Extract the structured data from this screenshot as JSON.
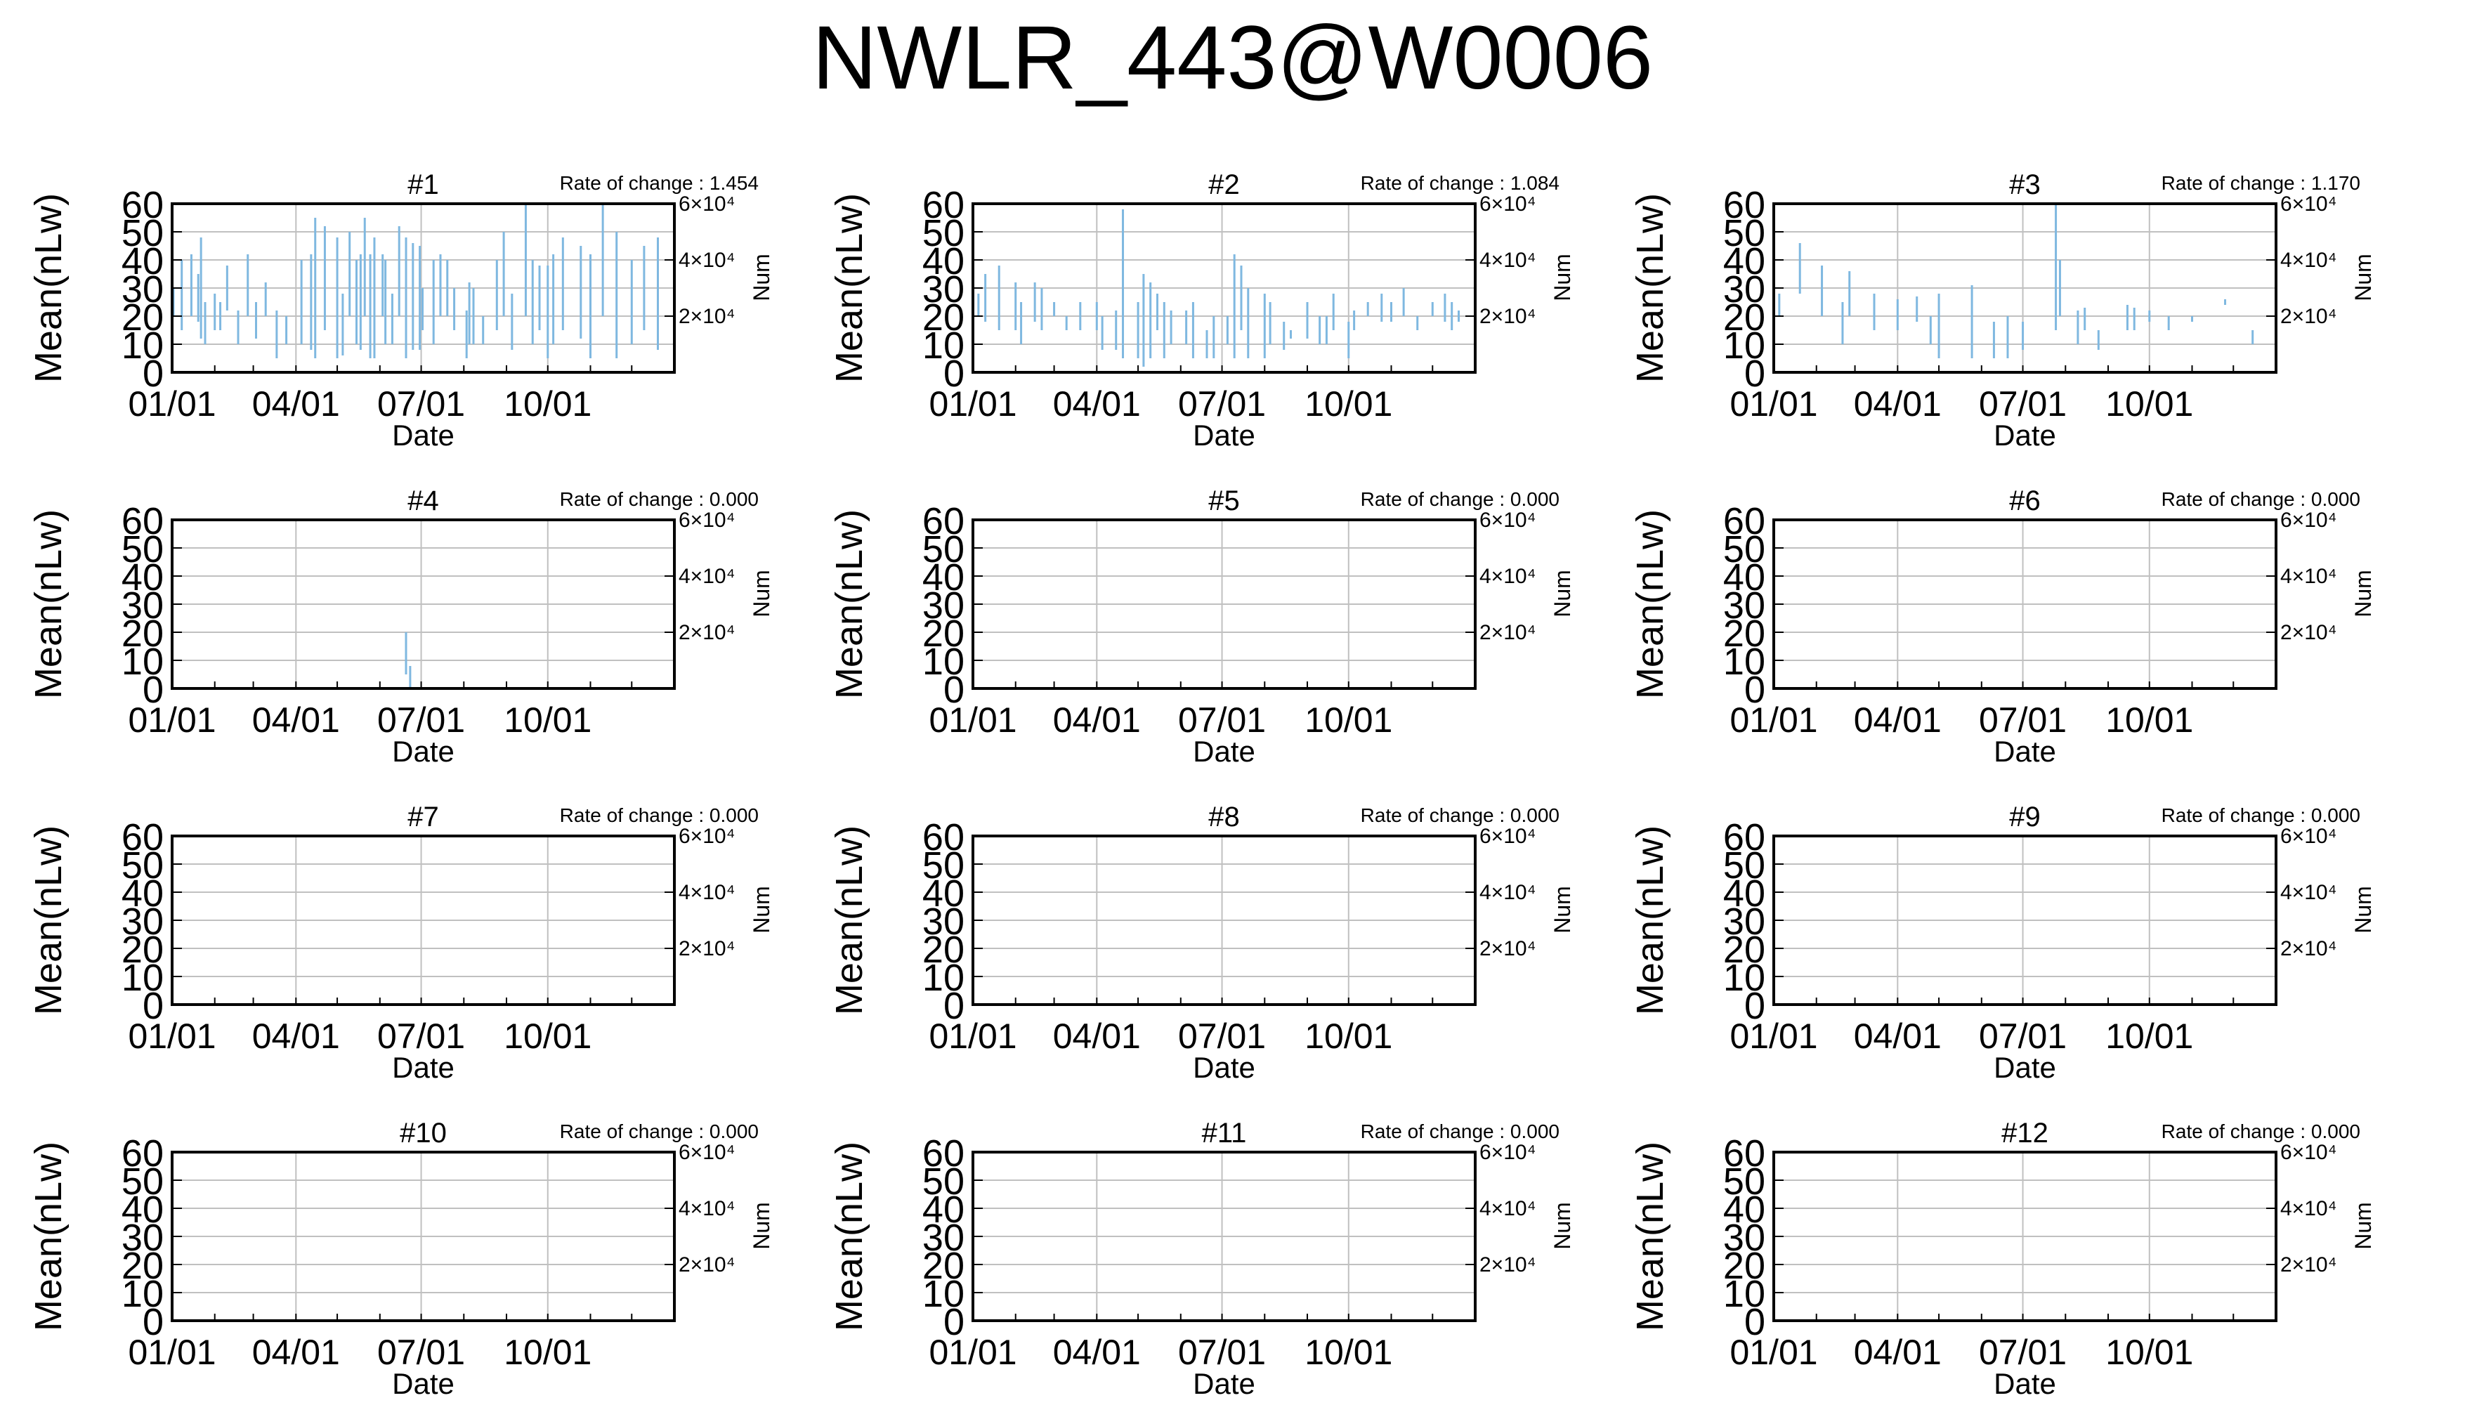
{
  "page": {
    "title": "NWLR_443@W0006"
  },
  "style": {
    "bar_color": "#7fb8e0",
    "grid_color": "#c0c0c0",
    "axis_color": "#000000"
  },
  "chart_data": [
    {
      "type": "bar",
      "panel": "#1",
      "rate_label": "Rate of change : 1.454",
      "xlabel": "Date",
      "ylabel": "Mean(nLw)",
      "y2label": "Num",
      "ylim": [
        0,
        60
      ],
      "yticks": [
        0,
        10,
        20,
        30,
        40,
        50,
        60
      ],
      "xlim": [
        "01/01",
        "12/31"
      ],
      "xticks": [
        "01/01",
        "04/01",
        "07/01",
        "10/01"
      ],
      "y2ticks": [
        {
          "v": 20,
          "label": "2×10⁴"
        },
        {
          "v": 40,
          "label": "4×10⁴"
        },
        {
          "v": 60,
          "label": "6×10⁴"
        }
      ],
      "grid": true,
      "series": [
        {
          "x": [
            "01/02",
            "01/08",
            "01/15",
            "01/20",
            "01/22",
            "01/25",
            "02/01",
            "02/05",
            "02/10",
            "02/18",
            "02/25",
            "03/03",
            "03/10",
            "03/18",
            "03/25",
            "04/05",
            "04/12",
            "04/15",
            "04/22",
            "05/01",
            "05/05",
            "05/10",
            "05/15",
            "05/18",
            "05/21",
            "05/25",
            "05/28",
            "06/03",
            "06/05",
            "06/10",
            "06/15",
            "06/20",
            "06/25",
            "06/30",
            "07/02",
            "07/10",
            "07/15",
            "07/20",
            "07/25",
            "08/03",
            "08/05",
            "08/08",
            "08/15",
            "08/25",
            "08/30",
            "09/05",
            "09/15",
            "09/20",
            "09/25",
            "10/01",
            "10/05",
            "10/12",
            "10/25",
            "11/01",
            "11/10",
            "11/20",
            "12/01",
            "12/10",
            "12/20"
          ],
          "low": [
            20,
            15,
            20,
            18,
            12,
            10,
            15,
            15,
            22,
            10,
            20,
            12,
            20,
            5,
            10,
            10,
            8,
            5,
            15,
            5,
            6,
            20,
            10,
            8,
            20,
            5,
            5,
            20,
            10,
            10,
            20,
            5,
            8,
            8,
            15,
            10,
            20,
            20,
            15,
            5,
            10,
            10,
            10,
            15,
            20,
            8,
            20,
            10,
            15,
            5,
            10,
            15,
            12,
            5,
            20,
            5,
            10,
            15,
            8
          ],
          "high": [
            30,
            40,
            42,
            35,
            48,
            25,
            28,
            25,
            38,
            22,
            42,
            25,
            32,
            22,
            20,
            40,
            42,
            55,
            52,
            48,
            28,
            50,
            40,
            42,
            55,
            42,
            48,
            42,
            40,
            28,
            52,
            48,
            46,
            45,
            30,
            40,
            42,
            40,
            30,
            22,
            32,
            30,
            20,
            40,
            50,
            28,
            60,
            40,
            38,
            38,
            42,
            48,
            45,
            42,
            60,
            50,
            40,
            45,
            48
          ]
        }
      ]
    },
    {
      "type": "bar",
      "panel": "#2",
      "rate_label": "Rate of change : 1.084",
      "xlabel": "Date",
      "ylabel": "Mean(nLw)",
      "y2label": "Num",
      "ylim": [
        0,
        60
      ],
      "yticks": [
        0,
        10,
        20,
        30,
        40,
        50,
        60
      ],
      "xlim": [
        "01/01",
        "12/31"
      ],
      "xticks": [
        "01/01",
        "04/01",
        "07/01",
        "10/01"
      ],
      "y2ticks": [
        {
          "v": 20,
          "label": "2×10⁴"
        },
        {
          "v": 40,
          "label": "4×10⁴"
        },
        {
          "v": 60,
          "label": "6×10⁴"
        }
      ],
      "grid": true,
      "series": [
        {
          "x": [
            "01/05",
            "01/10",
            "01/20",
            "02/01",
            "02/05",
            "02/15",
            "02/20",
            "03/01",
            "03/10",
            "03/20",
            "04/01",
            "04/05",
            "04/15",
            "04/20",
            "05/01",
            "05/05",
            "05/10",
            "05/15",
            "05/20",
            "05/25",
            "06/05",
            "06/10",
            "06/20",
            "06/25",
            "07/05",
            "07/10",
            "07/15",
            "07/20",
            "08/01",
            "08/05",
            "08/10",
            "08/15",
            "08/20",
            "09/01",
            "09/10",
            "09/15",
            "09/20",
            "10/01",
            "10/05",
            "10/15",
            "10/25",
            "11/01",
            "11/10",
            "11/20",
            "12/01",
            "12/10",
            "12/15",
            "12/20"
          ],
          "low": [
            20,
            18,
            15,
            15,
            10,
            18,
            15,
            20,
            15,
            15,
            15,
            8,
            8,
            5,
            5,
            2,
            5,
            15,
            5,
            10,
            10,
            5,
            5,
            5,
            10,
            5,
            15,
            5,
            5,
            10,
            15,
            8,
            12,
            12,
            10,
            10,
            15,
            5,
            15,
            20,
            18,
            18,
            20,
            15,
            20,
            18,
            15,
            18
          ],
          "high": [
            28,
            35,
            38,
            32,
            25,
            32,
            30,
            25,
            20,
            25,
            25,
            20,
            22,
            58,
            25,
            35,
            32,
            28,
            25,
            22,
            22,
            25,
            15,
            20,
            20,
            42,
            38,
            30,
            28,
            25,
            15,
            18,
            15,
            25,
            20,
            20,
            28,
            18,
            22,
            25,
            28,
            25,
            30,
            20,
            25,
            28,
            25,
            22
          ]
        }
      ]
    },
    {
      "type": "bar",
      "panel": "#3",
      "rate_label": "Rate of change : 1.170",
      "xlabel": "Date",
      "ylabel": "Mean(nLw)",
      "y2label": "Num",
      "ylim": [
        0,
        60
      ],
      "yticks": [
        0,
        10,
        20,
        30,
        40,
        50,
        60
      ],
      "xlim": [
        "01/01",
        "12/31"
      ],
      "xticks": [
        "01/01",
        "04/01",
        "07/01",
        "10/01"
      ],
      "y2ticks": [
        {
          "v": 20,
          "label": "2×10⁴"
        },
        {
          "v": 40,
          "label": "4×10⁴"
        },
        {
          "v": 60,
          "label": "6×10⁴"
        }
      ],
      "grid": true,
      "series": [
        {
          "x": [
            "01/05",
            "01/20",
            "02/05",
            "02/20",
            "02/25",
            "03/15",
            "04/01",
            "04/15",
            "04/25",
            "05/01",
            "05/25",
            "06/10",
            "06/20",
            "07/01",
            "07/25",
            "07/28",
            "08/10",
            "08/15",
            "08/25",
            "09/15",
            "09/20",
            "10/01",
            "10/15",
            "11/01",
            "11/25",
            "12/15"
          ],
          "low": [
            20,
            28,
            20,
            10,
            20,
            15,
            15,
            18,
            10,
            5,
            5,
            5,
            5,
            8,
            15,
            20,
            10,
            15,
            8,
            15,
            15,
            18,
            15,
            18,
            24,
            10
          ],
          "high": [
            28,
            46,
            38,
            25,
            36,
            28,
            26,
            27,
            20,
            28,
            31,
            18,
            20,
            18,
            60,
            40,
            22,
            23,
            15,
            24,
            23,
            22,
            20,
            20,
            26,
            15
          ]
        }
      ]
    },
    {
      "type": "bar",
      "panel": "#4",
      "rate_label": "Rate of change : 0.000",
      "xlabel": "Date",
      "ylabel": "Mean(nLw)",
      "y2label": "Num",
      "ylim": [
        0,
        60
      ],
      "yticks": [
        0,
        10,
        20,
        30,
        40,
        50,
        60
      ],
      "xlim": [
        "01/01",
        "12/31"
      ],
      "xticks": [
        "01/01",
        "04/01",
        "07/01",
        "10/01"
      ],
      "y2ticks": [
        {
          "v": 20,
          "label": "2×10⁴"
        },
        {
          "v": 40,
          "label": "4×10⁴"
        },
        {
          "v": 60,
          "label": "6×10⁴"
        }
      ],
      "grid": true,
      "series": [
        {
          "x": [
            "06/20",
            "06/23"
          ],
          "low": [
            5,
            0
          ],
          "high": [
            20,
            8
          ]
        }
      ]
    },
    {
      "type": "bar",
      "panel": "#5",
      "rate_label": "Rate of change : 0.000",
      "xlabel": "Date",
      "ylabel": "Mean(nLw)",
      "y2label": "Num",
      "ylim": [
        0,
        60
      ],
      "yticks": [
        0,
        10,
        20,
        30,
        40,
        50,
        60
      ],
      "xlim": [
        "01/01",
        "12/31"
      ],
      "xticks": [
        "01/01",
        "04/01",
        "07/01",
        "10/01"
      ],
      "y2ticks": [
        {
          "v": 20,
          "label": "2×10⁴"
        },
        {
          "v": 40,
          "label": "4×10⁴"
        },
        {
          "v": 60,
          "label": "6×10⁴"
        }
      ],
      "grid": true,
      "series": [
        {
          "x": [],
          "low": [],
          "high": []
        }
      ]
    },
    {
      "type": "bar",
      "panel": "#6",
      "rate_label": "Rate of change : 0.000",
      "xlabel": "Date",
      "ylabel": "Mean(nLw)",
      "y2label": "Num",
      "ylim": [
        0,
        60
      ],
      "yticks": [
        0,
        10,
        20,
        30,
        40,
        50,
        60
      ],
      "xlim": [
        "01/01",
        "12/31"
      ],
      "xticks": [
        "01/01",
        "04/01",
        "07/01",
        "10/01"
      ],
      "y2ticks": [
        {
          "v": 20,
          "label": "2×10⁴"
        },
        {
          "v": 40,
          "label": "4×10⁴"
        },
        {
          "v": 60,
          "label": "6×10⁴"
        }
      ],
      "grid": true,
      "series": [
        {
          "x": [],
          "low": [],
          "high": []
        }
      ]
    },
    {
      "type": "bar",
      "panel": "#7",
      "rate_label": "Rate of change : 0.000",
      "xlabel": "Date",
      "ylabel": "Mean(nLw)",
      "y2label": "Num",
      "ylim": [
        0,
        60
      ],
      "yticks": [
        0,
        10,
        20,
        30,
        40,
        50,
        60
      ],
      "xlim": [
        "01/01",
        "12/31"
      ],
      "xticks": [
        "01/01",
        "04/01",
        "07/01",
        "10/01"
      ],
      "y2ticks": [
        {
          "v": 20,
          "label": "2×10⁴"
        },
        {
          "v": 40,
          "label": "4×10⁴"
        },
        {
          "v": 60,
          "label": "6×10⁴"
        }
      ],
      "grid": true,
      "series": [
        {
          "x": [],
          "low": [],
          "high": []
        }
      ]
    },
    {
      "type": "bar",
      "panel": "#8",
      "rate_label": "Rate of change : 0.000",
      "xlabel": "Date",
      "ylabel": "Mean(nLw)",
      "y2label": "Num",
      "ylim": [
        0,
        60
      ],
      "yticks": [
        0,
        10,
        20,
        30,
        40,
        50,
        60
      ],
      "xlim": [
        "01/01",
        "12/31"
      ],
      "xticks": [
        "01/01",
        "04/01",
        "07/01",
        "10/01"
      ],
      "y2ticks": [
        {
          "v": 20,
          "label": "2×10⁴"
        },
        {
          "v": 40,
          "label": "4×10⁴"
        },
        {
          "v": 60,
          "label": "6×10⁴"
        }
      ],
      "grid": true,
      "series": [
        {
          "x": [],
          "low": [],
          "high": []
        }
      ]
    },
    {
      "type": "bar",
      "panel": "#9",
      "rate_label": "Rate of change : 0.000",
      "xlabel": "Date",
      "ylabel": "Mean(nLw)",
      "y2label": "Num",
      "ylim": [
        0,
        60
      ],
      "yticks": [
        0,
        10,
        20,
        30,
        40,
        50,
        60
      ],
      "xlim": [
        "01/01",
        "12/31"
      ],
      "xticks": [
        "01/01",
        "04/01",
        "07/01",
        "10/01"
      ],
      "y2ticks": [
        {
          "v": 20,
          "label": "2×10⁴"
        },
        {
          "v": 40,
          "label": "4×10⁴"
        },
        {
          "v": 60,
          "label": "6×10⁴"
        }
      ],
      "grid": true,
      "series": [
        {
          "x": [],
          "low": [],
          "high": []
        }
      ]
    },
    {
      "type": "bar",
      "panel": "#10",
      "rate_label": "Rate of change : 0.000",
      "xlabel": "Date",
      "ylabel": "Mean(nLw)",
      "y2label": "Num",
      "ylim": [
        0,
        60
      ],
      "yticks": [
        0,
        10,
        20,
        30,
        40,
        50,
        60
      ],
      "xlim": [
        "01/01",
        "12/31"
      ],
      "xticks": [
        "01/01",
        "04/01",
        "07/01",
        "10/01"
      ],
      "y2ticks": [
        {
          "v": 20,
          "label": "2×10⁴"
        },
        {
          "v": 40,
          "label": "4×10⁴"
        },
        {
          "v": 60,
          "label": "6×10⁴"
        }
      ],
      "grid": true,
      "series": [
        {
          "x": [],
          "low": [],
          "high": []
        }
      ]
    },
    {
      "type": "bar",
      "panel": "#11",
      "rate_label": "Rate of change : 0.000",
      "xlabel": "Date",
      "ylabel": "Mean(nLw)",
      "y2label": "Num",
      "ylim": [
        0,
        60
      ],
      "yticks": [
        0,
        10,
        20,
        30,
        40,
        50,
        60
      ],
      "xlim": [
        "01/01",
        "12/31"
      ],
      "xticks": [
        "01/01",
        "04/01",
        "07/01",
        "10/01"
      ],
      "y2ticks": [
        {
          "v": 20,
          "label": "2×10⁴"
        },
        {
          "v": 40,
          "label": "4×10⁴"
        },
        {
          "v": 60,
          "label": "6×10⁴"
        }
      ],
      "grid": true,
      "series": [
        {
          "x": [],
          "low": [],
          "high": []
        }
      ]
    },
    {
      "type": "bar",
      "panel": "#12",
      "rate_label": "Rate of change : 0.000",
      "xlabel": "Date",
      "ylabel": "Mean(nLw)",
      "y2label": "Num",
      "ylim": [
        0,
        60
      ],
      "yticks": [
        0,
        10,
        20,
        30,
        40,
        50,
        60
      ],
      "xlim": [
        "01/01",
        "12/31"
      ],
      "xticks": [
        "01/01",
        "04/01",
        "07/01",
        "10/01"
      ],
      "y2ticks": [
        {
          "v": 20,
          "label": "2×10⁴"
        },
        {
          "v": 40,
          "label": "4×10⁴"
        },
        {
          "v": 60,
          "label": "6×10⁴"
        }
      ],
      "grid": true,
      "series": [
        {
          "x": [],
          "low": [],
          "high": []
        }
      ]
    }
  ]
}
